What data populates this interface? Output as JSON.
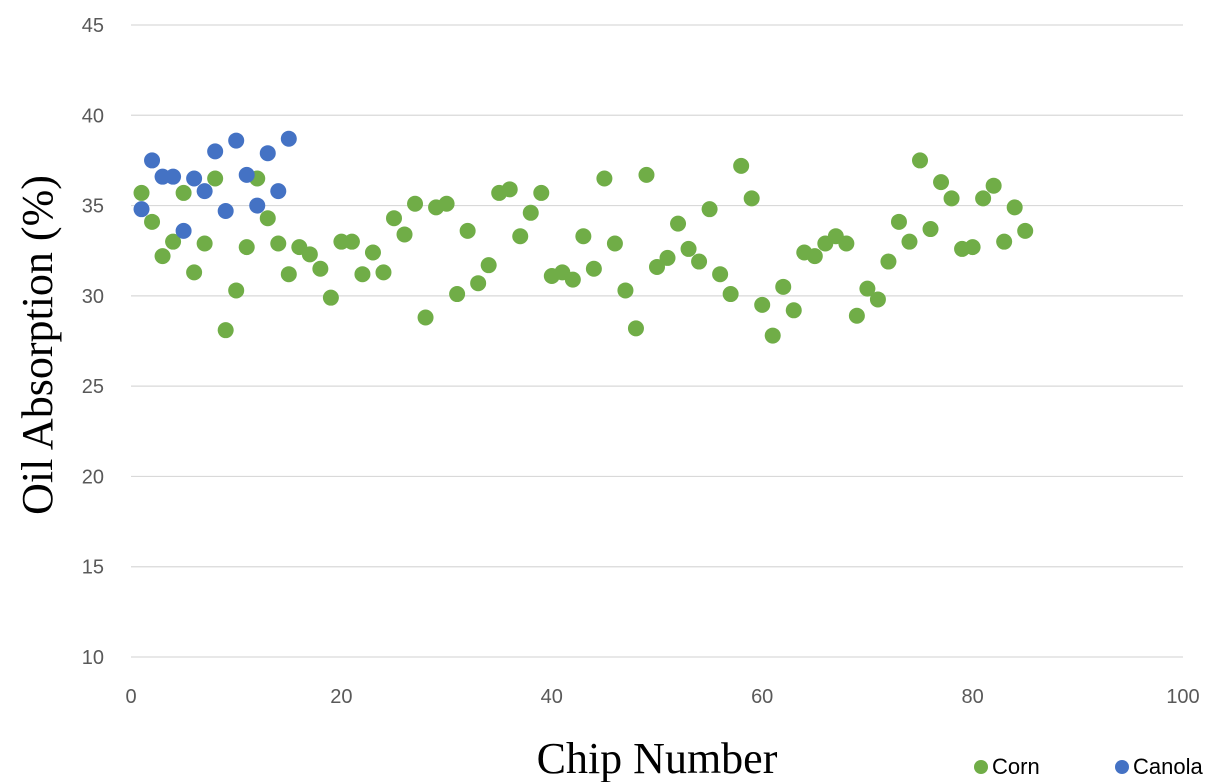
{
  "chart_data": {
    "type": "scatter",
    "title": "",
    "xlabel": "Chip Number",
    "ylabel": "Oil Absorption  (%)",
    "xlim": [
      0,
      100
    ],
    "ylim": [
      10,
      45
    ],
    "xticks": [
      0,
      20,
      40,
      60,
      80,
      100
    ],
    "yticks": [
      10,
      15,
      20,
      25,
      30,
      35,
      40,
      45
    ],
    "grid": "horizontal",
    "legend_position": "bottom-right",
    "series": [
      {
        "name": "Corn",
        "color": "#70ad47",
        "points": [
          [
            1,
            35.7
          ],
          [
            2,
            34.1
          ],
          [
            3,
            32.2
          ],
          [
            4,
            33.0
          ],
          [
            5,
            35.7
          ],
          [
            6,
            31.3
          ],
          [
            7,
            32.9
          ],
          [
            8,
            36.5
          ],
          [
            9,
            28.1
          ],
          [
            10,
            30.3
          ],
          [
            11,
            32.7
          ],
          [
            12,
            36.5
          ],
          [
            13,
            34.3
          ],
          [
            14,
            32.9
          ],
          [
            15,
            31.2
          ],
          [
            16,
            32.7
          ],
          [
            17,
            32.3
          ],
          [
            18,
            31.5
          ],
          [
            19,
            29.9
          ],
          [
            20,
            33.0
          ],
          [
            21,
            33.0
          ],
          [
            22,
            31.2
          ],
          [
            23,
            32.4
          ],
          [
            24,
            31.3
          ],
          [
            25,
            34.3
          ],
          [
            26,
            33.4
          ],
          [
            27,
            35.1
          ],
          [
            28,
            28.8
          ],
          [
            29,
            34.9
          ],
          [
            30,
            35.1
          ],
          [
            31,
            30.1
          ],
          [
            32,
            33.6
          ],
          [
            33,
            30.7
          ],
          [
            34,
            31.7
          ],
          [
            35,
            35.7
          ],
          [
            36,
            35.9
          ],
          [
            37,
            33.3
          ],
          [
            38,
            34.6
          ],
          [
            39,
            35.7
          ],
          [
            40,
            31.1
          ],
          [
            41,
            31.3
          ],
          [
            42,
            30.9
          ],
          [
            43,
            33.3
          ],
          [
            44,
            31.5
          ],
          [
            45,
            36.5
          ],
          [
            46,
            32.9
          ],
          [
            47,
            30.3
          ],
          [
            48,
            28.2
          ],
          [
            49,
            36.7
          ],
          [
            50,
            31.6
          ],
          [
            51,
            32.1
          ],
          [
            52,
            34.0
          ],
          [
            53,
            32.6
          ],
          [
            54,
            31.9
          ],
          [
            55,
            34.8
          ],
          [
            56,
            31.2
          ],
          [
            57,
            30.1
          ],
          [
            58,
            37.2
          ],
          [
            59,
            35.4
          ],
          [
            60,
            29.5
          ],
          [
            61,
            27.8
          ],
          [
            62,
            30.5
          ],
          [
            63,
            29.2
          ],
          [
            64,
            32.4
          ],
          [
            65,
            32.2
          ],
          [
            66,
            32.9
          ],
          [
            67,
            33.3
          ],
          [
            68,
            32.9
          ],
          [
            69,
            28.9
          ],
          [
            70,
            30.4
          ],
          [
            71,
            29.8
          ],
          [
            72,
            31.9
          ],
          [
            73,
            34.1
          ],
          [
            74,
            33.0
          ],
          [
            75,
            37.5
          ],
          [
            76,
            33.7
          ],
          [
            77,
            36.3
          ],
          [
            78,
            35.4
          ],
          [
            79,
            32.6
          ],
          [
            80,
            32.7
          ],
          [
            81,
            35.4
          ],
          [
            82,
            36.1
          ],
          [
            83,
            33.0
          ],
          [
            84,
            34.9
          ],
          [
            85,
            33.6
          ]
        ]
      },
      {
        "name": "Canola",
        "color": "#4472c4",
        "points": [
          [
            1,
            34.8
          ],
          [
            2,
            37.5
          ],
          [
            3,
            36.6
          ],
          [
            4,
            36.6
          ],
          [
            5,
            33.6
          ],
          [
            6,
            36.5
          ],
          [
            7,
            35.8
          ],
          [
            8,
            38.0
          ],
          [
            9,
            34.7
          ],
          [
            10,
            38.6
          ],
          [
            11,
            36.7
          ],
          [
            12,
            35.0
          ],
          [
            13,
            37.9
          ],
          [
            14,
            35.8
          ],
          [
            15,
            38.7
          ]
        ]
      }
    ]
  }
}
